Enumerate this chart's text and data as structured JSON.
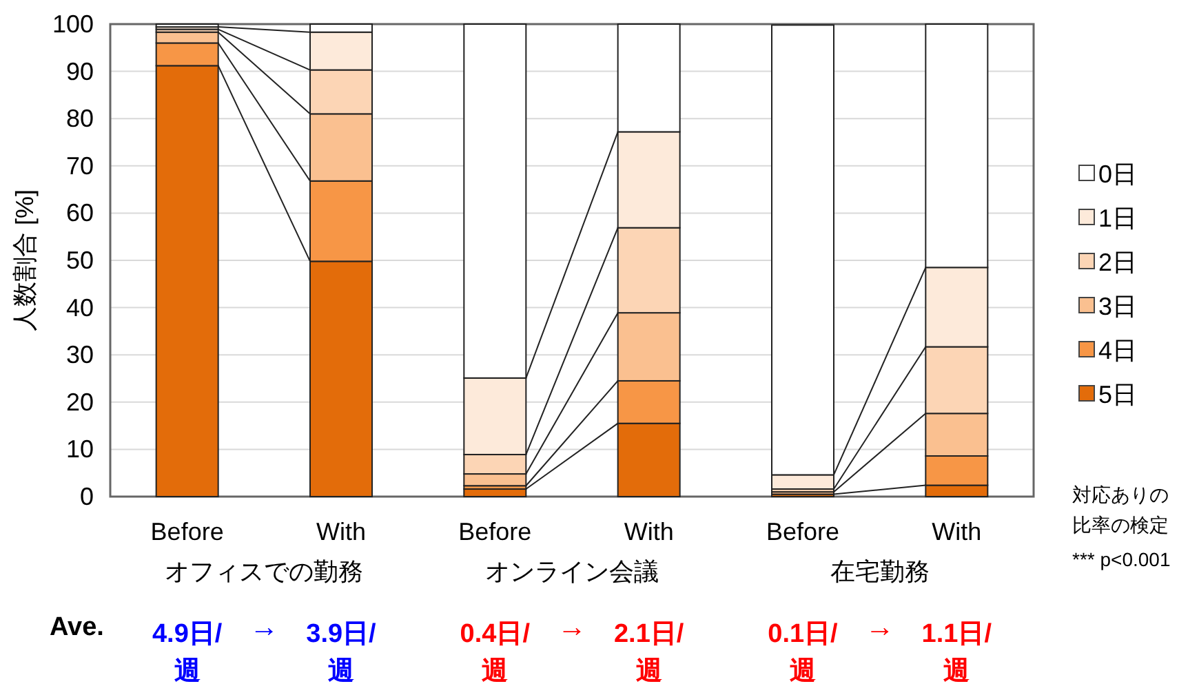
{
  "chart_data": {
    "type": "bar",
    "stacked": true,
    "ylabel": "人数割合 [%]",
    "categories": [
      "Before",
      "With",
      "Before",
      "With",
      "Before",
      "With"
    ],
    "series": [
      {
        "name": "5日",
        "color": "#e36c0a",
        "values": [
          91.2,
          49.8,
          1.6,
          15.5,
          0.5,
          2.4
        ]
      },
      {
        "name": "4日",
        "color": "#f79646",
        "values": [
          4.8,
          17.0,
          0.7,
          9.0,
          null,
          6.2
        ]
      },
      {
        "name": "3日",
        "color": "#fac090",
        "values": [
          2.3,
          14.2,
          2.5,
          14.4,
          0.5,
          9.0
        ]
      },
      {
        "name": "2日",
        "color": "#fcd5b5",
        "values": [
          0.6,
          9.3,
          4.1,
          18.0,
          0.6,
          14.1
        ]
      },
      {
        "name": "1日",
        "color": "#fdeada",
        "values": [
          0.5,
          8.0,
          16.2,
          20.3,
          3.0,
          16.8
        ]
      },
      {
        "name": "0日",
        "color": "#ffffff",
        "values": [
          0.6,
          1.7,
          74.9,
          22.8,
          95.2,
          51.5
        ]
      }
    ],
    "ylim": [
      0,
      100
    ],
    "yticks": [
      0,
      10,
      20,
      30,
      40,
      50,
      60,
      70,
      80,
      90,
      100
    ],
    "grid": "y",
    "legend": "right",
    "annotations": [
      "オフィスでの勤務",
      "オンライン会議",
      "在宅勤務",
      "Ave.",
      "4.9日/週",
      "→",
      "3.9日/週",
      "0.4日/週",
      "→",
      "2.1日/週",
      "0.1日/週",
      "→",
      "1.1日/週",
      "対応ありの比率の検定",
      "*** p<0.001"
    ]
  }
}
